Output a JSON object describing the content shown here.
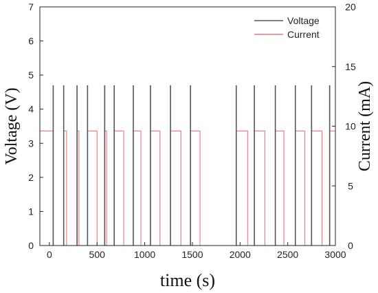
{
  "chart_data": {
    "type": "line",
    "xlabel": "time (s)",
    "ylabel_left": "Voltage (V)",
    "ylabel_right": "Current (mA)",
    "xlim": [
      -100,
      3000
    ],
    "ylim_left": [
      0,
      7
    ],
    "ylim_right": [
      0,
      20
    ],
    "x_ticks": [
      0,
      500,
      1000,
      1500,
      2000,
      2500,
      3000
    ],
    "y_left_ticks": [
      0,
      1,
      2,
      3,
      4,
      5,
      6,
      7
    ],
    "y_right_ticks": [
      0,
      5,
      10,
      15,
      20
    ],
    "grid": false,
    "legend_position": "top-right",
    "series": [
      {
        "name": "Voltage",
        "axis": "left",
        "color": "#555555",
        "pulse_times": [
          40,
          150,
          290,
          400,
          580,
          680,
          880,
          1060,
          1270,
          1480,
          1960,
          2150,
          2370,
          2580,
          2750,
          2940
        ],
        "pulse_peak": 4.7,
        "baseline": 0
      },
      {
        "name": "Current",
        "axis": "right",
        "color": "#ee7777",
        "high": 9.6,
        "low": 0,
        "high_intervals": [
          [
            -100,
            40
          ],
          [
            150,
            180
          ],
          [
            290,
            310
          ],
          [
            400,
            500
          ],
          [
            580,
            600
          ],
          [
            680,
            780
          ],
          [
            880,
            960
          ],
          [
            1060,
            1160
          ],
          [
            1270,
            1380
          ],
          [
            1480,
            1580
          ],
          [
            1960,
            2080
          ],
          [
            2150,
            2260
          ],
          [
            2370,
            2460
          ],
          [
            2580,
            2680
          ],
          [
            2750,
            2860
          ],
          [
            2940,
            3000
          ]
        ]
      }
    ]
  }
}
